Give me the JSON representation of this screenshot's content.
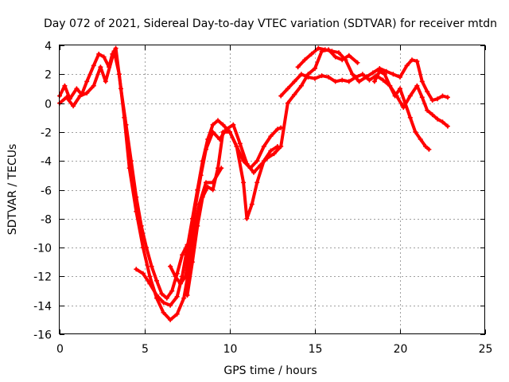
{
  "chart_data": {
    "type": "scatter",
    "title": "Day 072 of 2021, Sidereal Day-to-day VTEC variation (SDTVAR) for receiver mtdn",
    "xlabel": "GPS time / hours",
    "ylabel": "SDTVAR / TECUs",
    "xlim": [
      0,
      25
    ],
    "ylim": [
      -16,
      4
    ],
    "xticks": [
      0,
      5,
      10,
      15,
      20,
      25
    ],
    "yticks": [
      -16,
      -14,
      -12,
      -10,
      -8,
      -6,
      -4,
      -2,
      0,
      2,
      4
    ],
    "x_tick_labels": [
      "0",
      "5",
      "10",
      "15",
      "20",
      "25"
    ],
    "y_tick_labels": [
      "-16",
      "-14",
      "-12",
      "-10",
      "-8",
      "-6",
      "-4",
      "-2",
      "0",
      "2",
      "4"
    ],
    "grid": true,
    "marker": "plus",
    "color": "#ff0000",
    "series": [
      {
        "x": [
          0.0,
          0.3,
          0.6,
          1.0,
          1.3,
          1.6,
          2.0,
          2.3,
          2.6,
          2.9,
          3.1,
          3.3,
          3.6,
          3.9,
          4.2,
          4.5,
          4.8,
          5.1,
          5.4,
          5.7,
          6.0,
          6.3,
          6.6,
          6.9,
          7.2,
          7.5
        ],
        "y": [
          0.5,
          1.2,
          0.3,
          1.0,
          0.6,
          1.5,
          2.6,
          3.4,
          3.2,
          2.5,
          3.4,
          3.8,
          1.0,
          -1.5,
          -4.0,
          -6.5,
          -8.5,
          -10.0,
          -11.3,
          -12.3,
          -13.2,
          -13.5,
          -13.0,
          -11.8,
          -10.5,
          -9.8
        ]
      },
      {
        "x": [
          0.0,
          0.4,
          0.8,
          1.2,
          1.6,
          2.0,
          2.4,
          2.7,
          3.2,
          3.5,
          3.8,
          4.1,
          4.5,
          4.9,
          5.3,
          5.7,
          6.1,
          6.5,
          6.9,
          7.3,
          7.6,
          7.9,
          8.2,
          8.6,
          9.0,
          9.5
        ],
        "y": [
          0.0,
          0.4,
          -0.2,
          0.5,
          0.7,
          1.2,
          2.5,
          1.5,
          3.6,
          2.0,
          -1.0,
          -4.5,
          -7.5,
          -10.0,
          -12.0,
          -13.5,
          -14.5,
          -15.0,
          -14.6,
          -13.5,
          -11.5,
          -9.0,
          -7.0,
          -5.5,
          -5.5,
          -4.5
        ]
      },
      {
        "x": [
          4.5,
          4.9,
          5.3,
          5.7,
          6.1,
          6.5,
          6.9,
          7.2,
          7.5,
          7.8,
          8.1,
          8.4,
          8.7,
          9.0,
          9.3,
          9.6,
          10.0,
          10.4,
          10.8,
          11.2,
          11.6,
          12.0,
          12.4,
          12.8,
          13.0
        ],
        "y": [
          -11.5,
          -11.8,
          -12.5,
          -13.3,
          -13.8,
          -14.0,
          -13.4,
          -12.0,
          -10.0,
          -8.0,
          -6.0,
          -4.0,
          -2.5,
          -1.5,
          -1.2,
          -1.5,
          -2.0,
          -3.0,
          -4.0,
          -4.5,
          -4.0,
          -3.0,
          -2.3,
          -1.8,
          -1.7
        ]
      },
      {
        "x": [
          6.5,
          6.8,
          7.1,
          7.4,
          7.7,
          8.0,
          8.3,
          8.6,
          9.0,
          9.4,
          9.8,
          10.2,
          10.6,
          11.0,
          11.4,
          11.8,
          12.2,
          12.6,
          13.0,
          13.4,
          13.8,
          14.2,
          14.6,
          15.0,
          15.4,
          15.8,
          16.2,
          16.6,
          17.0,
          17.5
        ],
        "y": [
          -11.3,
          -12.0,
          -12.5,
          -12.0,
          -9.5,
          -7.0,
          -5.0,
          -3.2,
          -2.0,
          -2.5,
          -1.8,
          -1.5,
          -2.8,
          -4.2,
          -4.8,
          -4.3,
          -3.8,
          -3.5,
          -3.0,
          0.0,
          0.6,
          1.2,
          2.0,
          2.4,
          3.6,
          3.7,
          3.2,
          3.0,
          3.3,
          2.8
        ]
      },
      {
        "x": [
          7.5,
          7.8,
          8.1,
          8.4,
          8.7,
          9.0,
          9.3,
          9.6,
          10.0,
          10.4,
          10.8,
          11.0,
          11.3,
          11.6,
          12.0,
          12.4,
          12.8
        ],
        "y": [
          -13.3,
          -11.0,
          -8.5,
          -6.5,
          -5.8,
          -6.0,
          -4.5,
          -2.0,
          -2.0,
          -3.0,
          -5.5,
          -8.0,
          -7.0,
          -5.5,
          -4.0,
          -3.3,
          -3.0
        ]
      },
      {
        "x": [
          13.0,
          13.4,
          13.8,
          14.2,
          14.6,
          15.0,
          15.4,
          15.8,
          16.2,
          16.6,
          17.0,
          17.4,
          17.8,
          18.2,
          18.6,
          19.0,
          19.4,
          19.8,
          20.2,
          20.6,
          21.0,
          21.3,
          21.6,
          21.9,
          22.2,
          22.5,
          22.8
        ],
        "y": [
          0.5,
          1.0,
          1.5,
          2.0,
          1.8,
          1.7,
          1.9,
          1.8,
          1.5,
          1.6,
          1.5,
          1.8,
          2.0,
          1.6,
          1.9,
          1.6,
          1.2,
          0.5,
          -0.3,
          0.5,
          1.2,
          0.4,
          -0.5,
          -0.8,
          -1.1,
          -1.3,
          -1.6
        ]
      },
      {
        "x": [
          14.0,
          14.4,
          14.8,
          15.2,
          15.6,
          16.0,
          16.4,
          16.8,
          17.2,
          17.6,
          18.0,
          18.4,
          18.8,
          19.2,
          19.6,
          20.0,
          20.4,
          20.7,
          21.0,
          21.3,
          21.6,
          21.9,
          22.2,
          22.5,
          22.8
        ],
        "y": [
          2.5,
          3.0,
          3.4,
          3.8,
          3.7,
          3.6,
          3.5,
          3.0,
          2.0,
          1.5,
          1.8,
          2.1,
          2.4,
          2.2,
          2.0,
          1.8,
          2.6,
          3.0,
          2.9,
          1.5,
          0.8,
          0.2,
          0.3,
          0.5,
          0.4
        ]
      },
      {
        "x": [
          18.5,
          18.8,
          19.1,
          19.4,
          19.7,
          20.0,
          20.3,
          20.6,
          20.9,
          21.2,
          21.5,
          21.7
        ],
        "y": [
          1.5,
          2.2,
          2.0,
          1.2,
          0.5,
          1.0,
          0.0,
          -1.0,
          -2.0,
          -2.5,
          -3.0,
          -3.2
        ]
      }
    ]
  }
}
